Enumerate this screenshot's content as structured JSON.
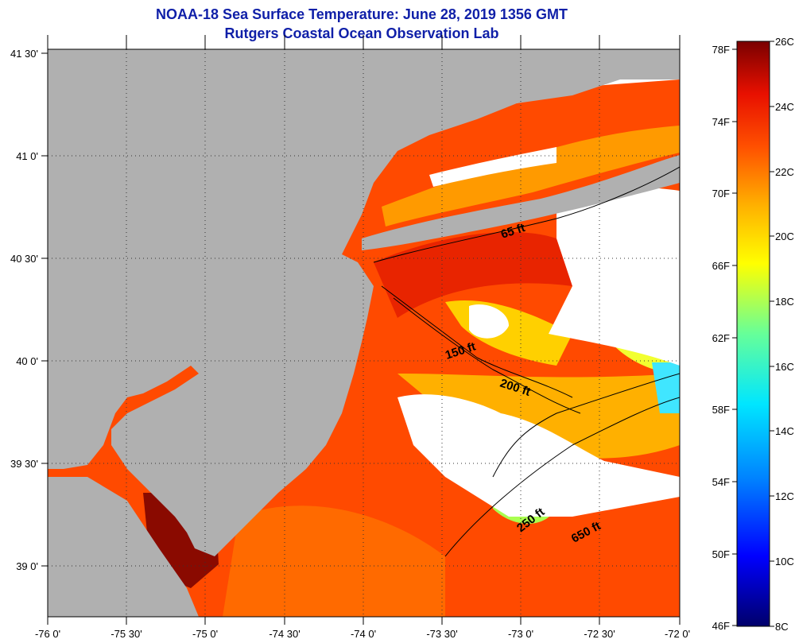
{
  "header": {
    "title": "NOAA-18 Sea Surface Temperature:  June 28, 2019 1356 GMT",
    "subtitle": "Rutgers Coastal Ocean Observation Lab"
  },
  "map": {
    "lon_ticks": [
      "-76 0'",
      "-75 30'",
      "-75 0'",
      "-74 30'",
      "-74 0'",
      "-73 30'",
      "-73 0'",
      "-72 30'",
      "-72 0'"
    ],
    "lat_ticks": [
      "41 30'",
      "41 0'",
      "40 30'",
      "40 0'",
      "39 30'",
      "39 0'"
    ],
    "contour_labels": [
      "65 ft",
      "150 ft",
      "200 ft",
      "250 ft",
      "650 ft"
    ],
    "colors": {
      "land": "#b0b0b0",
      "cloud": "#ffffff"
    }
  },
  "colorbar": {
    "celsius_labels": [
      "26C",
      "24C",
      "22C",
      "20C",
      "18C",
      "16C",
      "14C",
      "12C",
      "10C",
      "8C"
    ],
    "fahrenheit_labels": [
      "78F",
      "74F",
      "70F",
      "66F",
      "62F",
      "58F",
      "54F",
      "50F",
      "46F"
    ],
    "colors": [
      "#00006a",
      "#0000ff",
      "#0080ff",
      "#00e6ff",
      "#66ff99",
      "#ffff00",
      "#ffb000",
      "#ff5000",
      "#e81000",
      "#7a0000"
    ]
  }
}
